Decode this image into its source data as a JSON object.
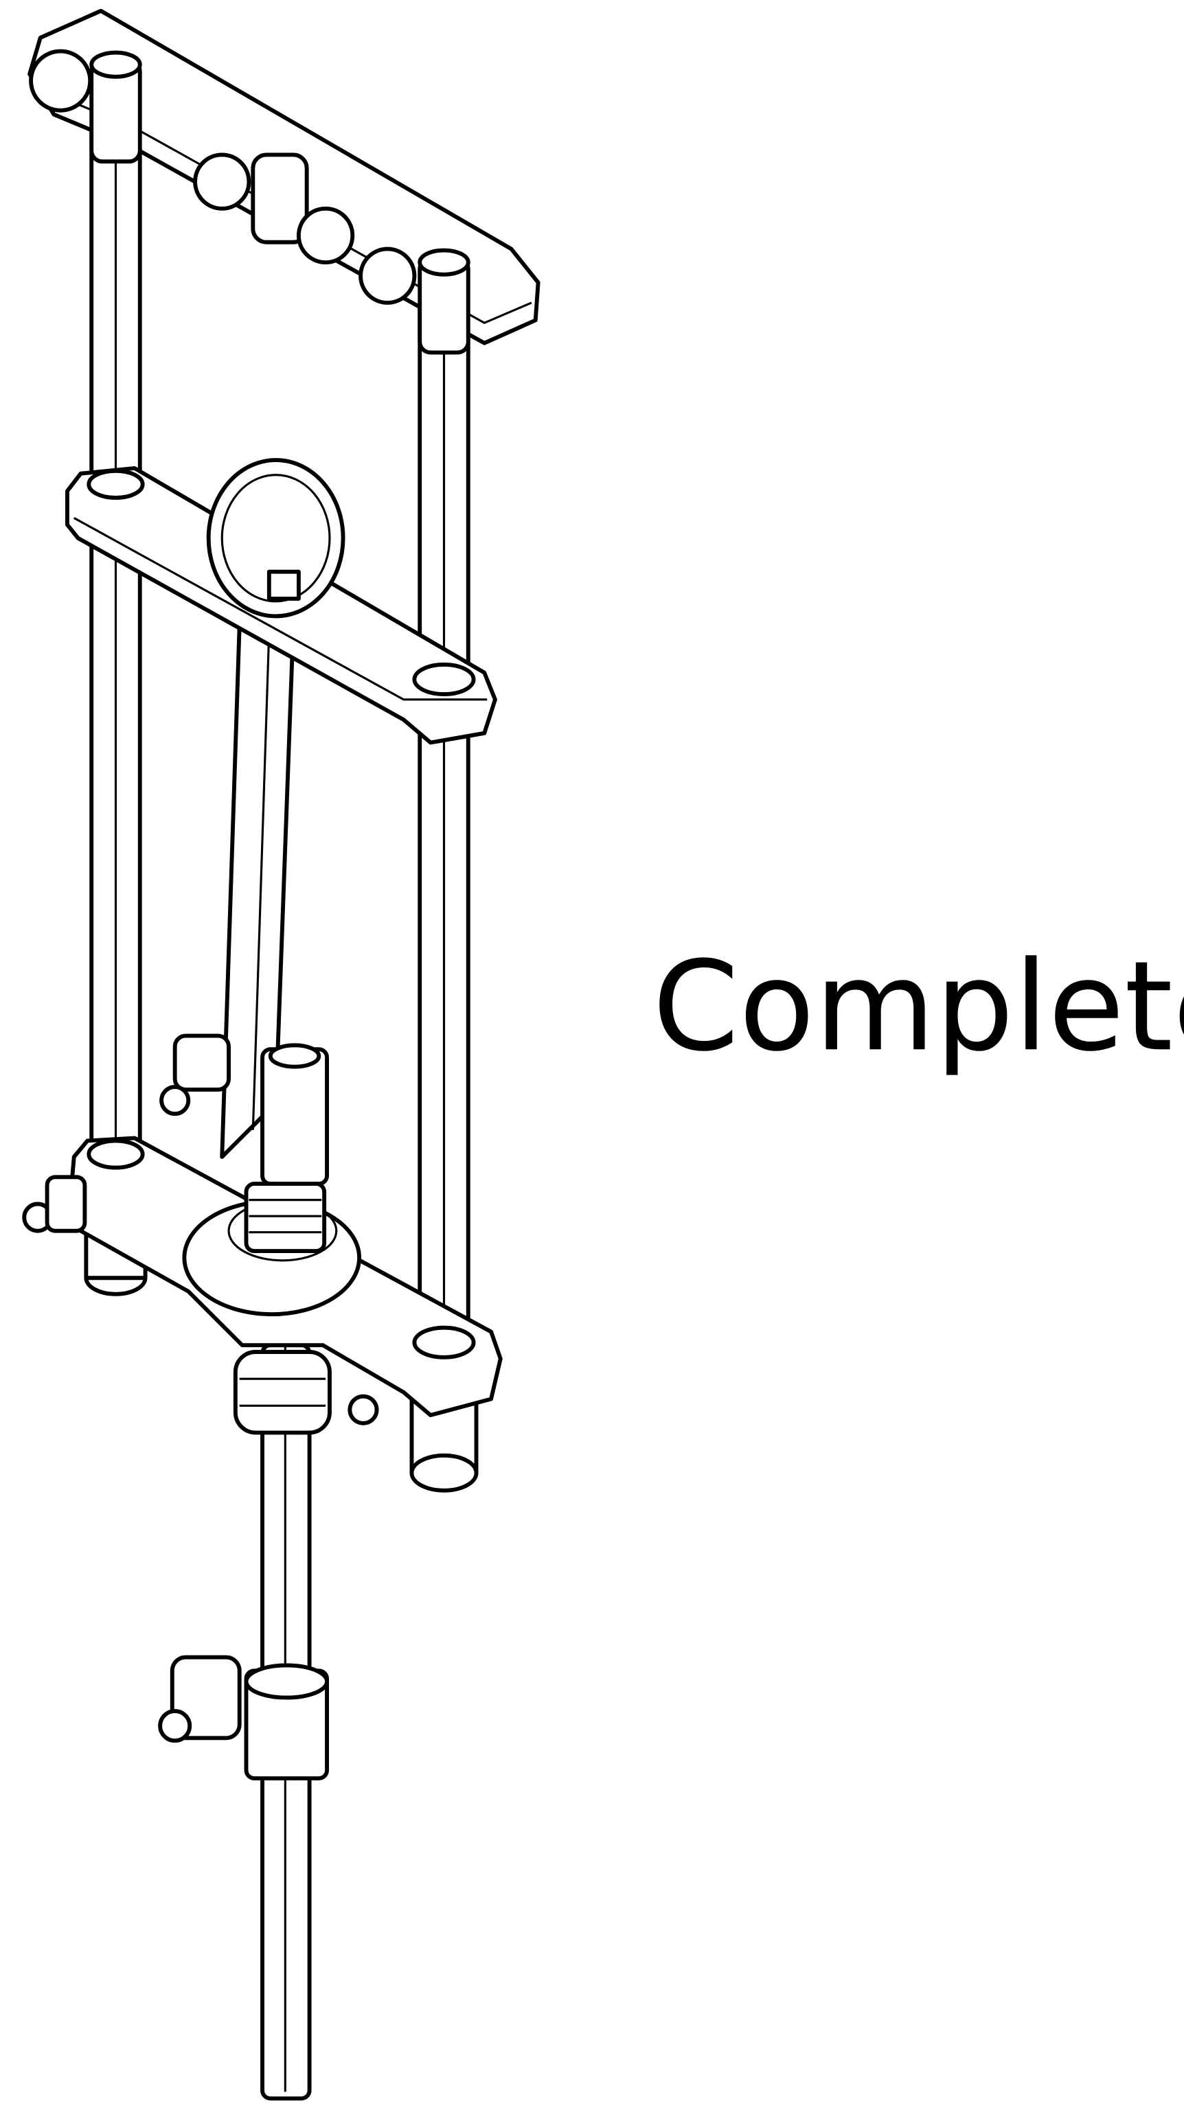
{
  "label": "Complete"
}
